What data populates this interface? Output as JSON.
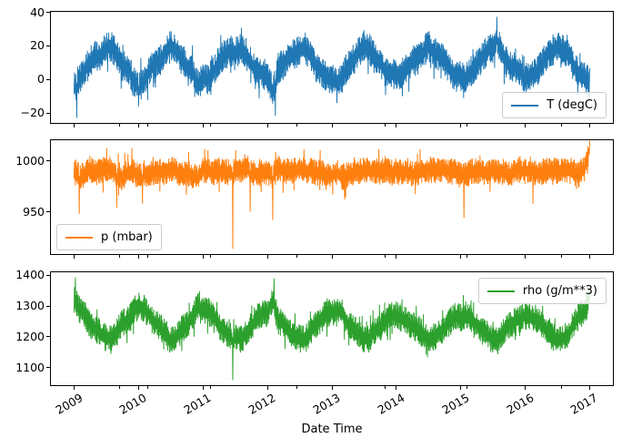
{
  "x_axis": {
    "label": "Date Time",
    "xlim": [
      2008.64,
      2017.36
    ],
    "year_ticks": [
      {
        "value": 2009,
        "label": "2009"
      },
      {
        "value": 2010,
        "label": "2010"
      },
      {
        "value": 2011,
        "label": "2011"
      },
      {
        "value": 2012,
        "label": "2012"
      },
      {
        "value": 2013,
        "label": "2013"
      },
      {
        "value": 2014,
        "label": "2014"
      },
      {
        "value": 2015,
        "label": "2015"
      },
      {
        "value": 2016,
        "label": "2016"
      },
      {
        "value": 2017,
        "label": "2017"
      }
    ],
    "minor_ticks": [
      2009.7,
      2010.14,
      2011.12,
      2012.45,
      2013.83,
      2015.09,
      2016.56
    ]
  },
  "chart_data": [
    {
      "type": "line",
      "series_name": "T (degC)",
      "legend_label": "T (degC)",
      "legend_position": "lower right",
      "color": "#1f77b4",
      "ylim": [
        -25.8,
        40.3
      ],
      "yticks": [
        {
          "value": 40,
          "label": "40"
        },
        {
          "value": 20,
          "label": "20"
        },
        {
          "value": 0,
          "label": "0"
        },
        {
          "value": -20,
          "label": "−20"
        }
      ],
      "x_start": 2009.0,
      "x_end": 2017.0,
      "x_step_months": 1,
      "monthly_values": [
        -5,
        1,
        5,
        11,
        14,
        15,
        19,
        19,
        15,
        8,
        7,
        0,
        -4,
        -1,
        5,
        9,
        11,
        17,
        21,
        17,
        12,
        8,
        5,
        -3,
        1,
        0,
        5,
        11,
        14,
        17,
        16,
        18,
        15,
        9,
        4,
        4,
        2,
        -7,
        7,
        9,
        15,
        15,
        18,
        19,
        14,
        8,
        5,
        1,
        0,
        -1,
        1,
        9,
        12,
        16,
        20,
        18,
        13,
        10,
        4,
        4,
        2,
        4,
        7,
        11,
        12,
        16,
        20,
        16,
        14,
        11,
        6,
        2,
        2,
        1,
        5,
        9,
        13,
        17,
        20,
        21,
        13,
        8,
        7,
        6,
        0,
        3,
        4,
        8,
        14,
        17,
        19,
        18,
        16,
        8,
        3,
        1,
        -2
      ],
      "noise_amplitude": 8.5,
      "events": [
        {
          "x": 2009.04,
          "y": -22.8
        },
        {
          "x": 2010.0,
          "y": -16
        },
        {
          "x": 2012.12,
          "y": -21.5
        },
        {
          "x": 2013.08,
          "y": -14
        },
        {
          "x": 2015.56,
          "y": 37.3
        },
        {
          "x": 2016.99,
          "y": -11
        }
      ]
    },
    {
      "type": "line",
      "series_name": "p (mbar)",
      "legend_label": "p (mbar)",
      "legend_position": "lower left",
      "color": "#ff7f0e",
      "ylim": [
        908.5,
        1020.4
      ],
      "yticks": [
        {
          "value": 1000,
          "label": "1000"
        },
        {
          "value": 950,
          "label": "950"
        }
      ],
      "x_start": 2009.0,
      "x_end": 2017.0,
      "x_step_months": 1,
      "monthly_values": [
        990,
        985,
        987,
        991,
        989,
        990,
        992,
        991,
        988,
        984,
        988,
        991,
        984,
        988,
        986,
        989,
        991,
        990,
        992,
        990,
        986,
        988,
        985,
        983,
        992,
        990,
        988,
        991,
        990,
        988,
        990,
        992,
        994,
        990,
        986,
        990,
        988,
        985,
        994,
        989,
        990,
        991,
        992,
        990,
        991,
        988,
        990,
        986,
        986,
        988,
        984,
        986,
        988,
        990,
        992,
        991,
        990,
        989,
        992,
        988,
        990,
        988,
        990,
        987,
        989,
        990,
        991,
        992,
        990,
        992,
        989,
        991,
        985,
        987,
        990,
        989,
        990,
        988,
        991,
        990,
        989,
        986,
        990,
        992,
        989,
        992,
        988,
        989,
        990,
        991,
        990,
        992,
        991,
        989,
        987,
        992,
        1008
      ],
      "noise_amplitude": 12,
      "events": [
        {
          "x": 2009.08,
          "y": 948
        },
        {
          "x": 2009.66,
          "y": 954
        },
        {
          "x": 2010.06,
          "y": 958
        },
        {
          "x": 2011.46,
          "y": 913.6
        },
        {
          "x": 2011.73,
          "y": 950
        },
        {
          "x": 2012.08,
          "y": 942
        },
        {
          "x": 2013.2,
          "y": 962
        },
        {
          "x": 2015.05,
          "y": 944
        },
        {
          "x": 2016.12,
          "y": 958
        },
        {
          "x": 2016.99,
          "y": 1013
        }
      ]
    },
    {
      "type": "line",
      "series_name": "rho (g/m**3)",
      "legend_label": "rho (g/m**3)",
      "legend_position": "upper right",
      "color": "#2ca02c",
      "ylim": [
        1042.8,
        1410.2
      ],
      "yticks": [
        {
          "value": 1400,
          "label": "1400"
        },
        {
          "value": 1300,
          "label": "1300"
        },
        {
          "value": 1200,
          "label": "1200"
        },
        {
          "value": 1100,
          "label": "1100"
        }
      ],
      "x_start": 2009.0,
      "x_end": 2017.0,
      "x_step_months": 1,
      "monthly_values": [
        1320,
        1290,
        1272,
        1240,
        1226,
        1212,
        1196,
        1200,
        1216,
        1246,
        1256,
        1282,
        1302,
        1292,
        1270,
        1246,
        1236,
        1206,
        1186,
        1196,
        1222,
        1240,
        1262,
        1300,
        1286,
        1282,
        1268,
        1236,
        1220,
        1200,
        1198,
        1192,
        1210,
        1236,
        1262,
        1272,
        1276,
        1322,
        1252,
        1240,
        1216,
        1206,
        1196,
        1190,
        1220,
        1240,
        1260,
        1276,
        1282,
        1286,
        1278,
        1240,
        1226,
        1208,
        1190,
        1196,
        1220,
        1230,
        1256,
        1268,
        1272,
        1258,
        1250,
        1236,
        1226,
        1208,
        1192,
        1200,
        1216,
        1226,
        1250,
        1266,
        1262,
        1270,
        1256,
        1240,
        1222,
        1206,
        1190,
        1188,
        1218,
        1240,
        1250,
        1256,
        1270,
        1262,
        1260,
        1242,
        1216,
        1202,
        1192,
        1196,
        1206,
        1240,
        1268,
        1282,
        1320
      ],
      "noise_amplitude": 42,
      "events": [
        {
          "x": 2009.02,
          "y": 1393
        },
        {
          "x": 2011.46,
          "y": 1059
        },
        {
          "x": 2012.1,
          "y": 1390
        },
        {
          "x": 2016.99,
          "y": 1346
        }
      ]
    }
  ]
}
